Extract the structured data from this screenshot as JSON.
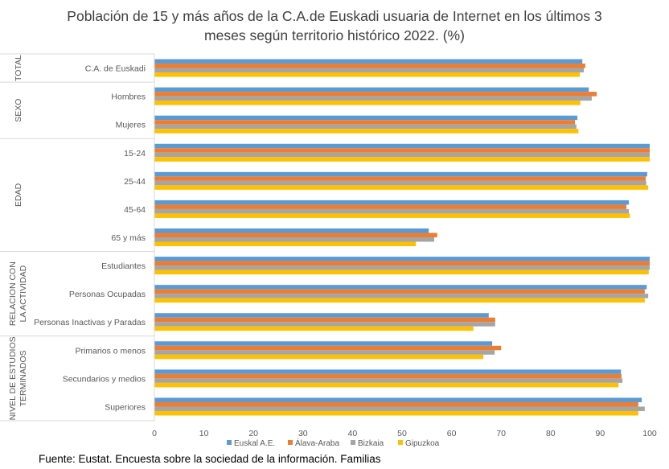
{
  "title_lines": [
    "Población de 15 y más años de la C.A.de Euskadi usuaria de Internet en los últimos 3",
    "meses según territorio histórico 2022. (%)"
  ],
  "source": "Fuente: Eustat. Encuesta sobre la sociedad de la información. Familias",
  "chart_data": {
    "type": "bar",
    "orientation": "horizontal",
    "title": "Población de 15 y más años de la C.A.de Euskadi usuaria de Internet en los últimos 3 meses según territorio histórico 2022. (%)",
    "xlabel": "",
    "ylabel": "",
    "xlim": [
      0,
      100
    ],
    "xticks": [
      0,
      10,
      20,
      30,
      40,
      50,
      60,
      70,
      80,
      90,
      100
    ],
    "grid": false,
    "legend_position": "bottom",
    "groups": [
      {
        "name": "TOTAL",
        "categories": [
          "C.A. de Euskadi"
        ]
      },
      {
        "name": "SEXO",
        "categories": [
          "Hombres",
          "Mujeres"
        ]
      },
      {
        "name": "EDAD",
        "categories": [
          "15-24",
          "25-44",
          "45-64",
          "65 y más"
        ]
      },
      {
        "name": "RELACION CON LA ACTIVIDAD",
        "categories": [
          "Estudiantes",
          "Personas Ocupadas",
          "Personas Inactivas y Paradas"
        ]
      },
      {
        "name": "NIVEL DE ESTUDIOS TERMINADOS",
        "categories": [
          "Primarios o menos",
          "Secundarios y medios",
          "Superiores"
        ]
      }
    ],
    "categories": [
      "C.A. de Euskadi",
      "Hombres",
      "Mujeres",
      "15-24",
      "25-44",
      "45-64",
      "65 y más",
      "Estudiantes",
      "Personas Ocupadas",
      "Personas Inactivas y Paradas",
      "Primarios o menos",
      "Secundarios y medios",
      "Superiores"
    ],
    "series": [
      {
        "name": "Euskal A.E.",
        "color": "#5B9BD5",
        "values": [
          86.4,
          87.7,
          85.4,
          100.0,
          99.5,
          95.8,
          55.4,
          100.0,
          99.4,
          67.5,
          68.2,
          94.2,
          98.4
        ]
      },
      {
        "name": "Álava-Araba",
        "color": "#ED7D31",
        "values": [
          87.0,
          89.3,
          84.9,
          100.0,
          99.2,
          95.3,
          57.1,
          100.0,
          99.0,
          68.8,
          70.0,
          94.3,
          97.7
        ]
      },
      {
        "name": "Bizkaia",
        "color": "#A5A5A5",
        "values": [
          86.7,
          88.3,
          85.2,
          100.0,
          99.3,
          95.8,
          56.5,
          100.0,
          99.7,
          68.8,
          68.7,
          94.5,
          99.0
        ]
      },
      {
        "name": "Gipuzkoa",
        "color": "#FFC000",
        "values": [
          85.9,
          86.0,
          85.6,
          100.0,
          99.7,
          96.0,
          52.8,
          99.8,
          99.0,
          64.4,
          66.4,
          93.7,
          97.7
        ]
      }
    ]
  }
}
